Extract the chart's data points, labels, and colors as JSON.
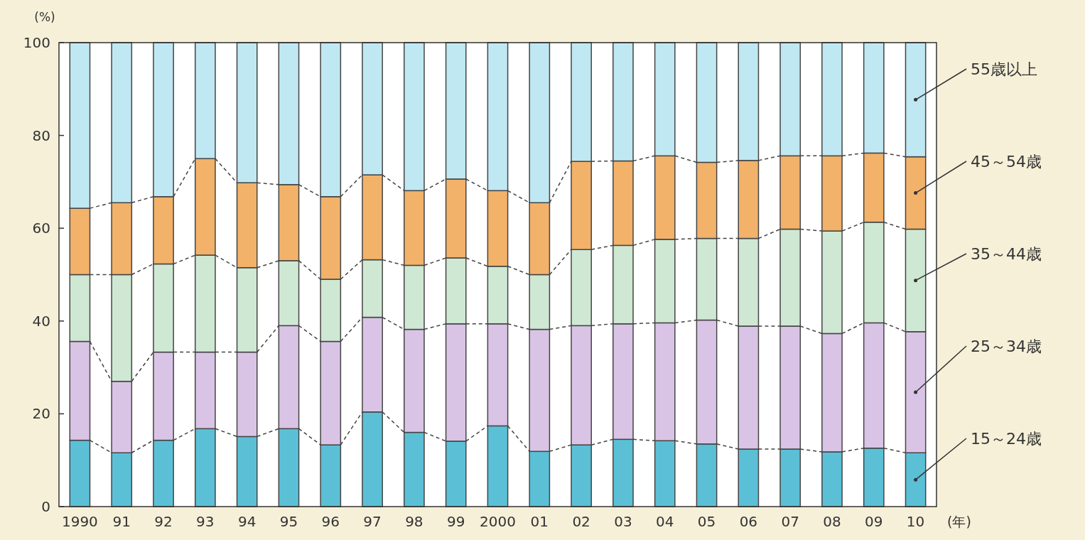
{
  "chart_data": {
    "type": "bar",
    "stacked": true,
    "ylabel": "(%)",
    "xlabel": "(年)",
    "categories": [
      "1990",
      "91",
      "92",
      "93",
      "94",
      "95",
      "96",
      "97",
      "98",
      "99",
      "2000",
      "01",
      "02",
      "03",
      "04",
      "05",
      "06",
      "07",
      "08",
      "09",
      "10"
    ],
    "ylim": [
      0,
      100
    ],
    "yticks": [
      0,
      20,
      40,
      60,
      80,
      100
    ],
    "legend": "right",
    "grid": false,
    "series": [
      {
        "name": "15～24歳",
        "color": "#5bc0d6",
        "values": [
          14.3,
          11.6,
          14.3,
          16.8,
          15.1,
          16.8,
          13.3,
          20.4,
          16.0,
          14.1,
          17.4,
          11.9,
          13.3,
          14.5,
          14.2,
          13.5,
          12.4,
          12.4,
          11.8,
          12.6,
          11.6
        ]
      },
      {
        "name": "25～34歳",
        "color": "#d9c4e6",
        "values": [
          21.3,
          15.4,
          19.0,
          16.5,
          18.2,
          22.2,
          22.3,
          20.4,
          22.2,
          25.3,
          22.0,
          26.3,
          25.7,
          24.9,
          25.4,
          26.7,
          26.5,
          26.5,
          25.5,
          27.0,
          26.1
        ]
      },
      {
        "name": "35～44歳",
        "color": "#cfe8d3",
        "values": [
          14.4,
          23.0,
          19.0,
          20.9,
          18.2,
          14.0,
          13.4,
          12.4,
          13.8,
          14.2,
          12.4,
          11.8,
          16.4,
          16.9,
          18.0,
          17.6,
          18.9,
          20.9,
          22.1,
          21.7,
          22.1
        ]
      },
      {
        "name": "45～54歳",
        "color": "#f2b26a",
        "values": [
          14.3,
          15.5,
          14.5,
          20.8,
          18.3,
          16.4,
          17.8,
          18.3,
          16.1,
          17.0,
          16.3,
          15.5,
          19.0,
          18.2,
          18.0,
          16.4,
          16.8,
          15.8,
          16.2,
          14.9,
          15.6
        ]
      },
      {
        "name": "55歳以上",
        "color": "#bfe8f2",
        "values": [
          35.7,
          34.5,
          33.2,
          25.0,
          30.2,
          30.6,
          33.2,
          28.5,
          31.9,
          29.4,
          31.9,
          34.5,
          25.6,
          25.5,
          24.4,
          25.8,
          25.4,
          24.4,
          24.4,
          23.8,
          24.6
        ]
      }
    ]
  }
}
